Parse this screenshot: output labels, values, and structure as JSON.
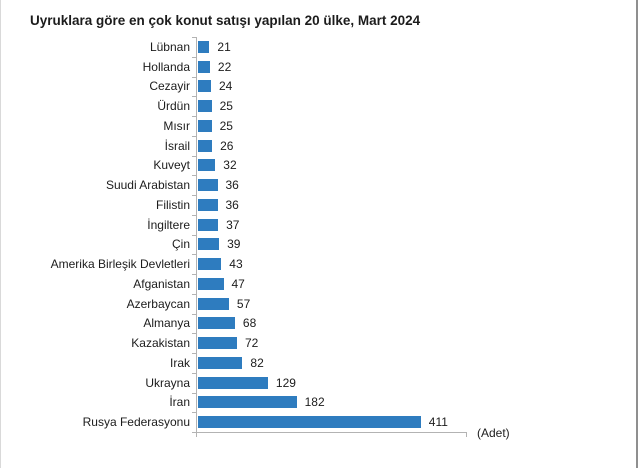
{
  "chart_data": {
    "type": "bar",
    "orientation": "horizontal",
    "title": "Uyruklara göre en çok konut satışı yapılan 20 ülke, Mart 2024",
    "unit": "(Adet)",
    "categories": [
      "Lübnan",
      "Hollanda",
      "Cezayir",
      "Ürdün",
      "Mısır",
      "İsrail",
      "Kuveyt",
      "Suudi Arabistan",
      "Filistin",
      "İngiltere",
      "Çin",
      "Amerika Birleşik Devletleri",
      "Afganistan",
      "Azerbaycan",
      "Almanya",
      "Kazakistan",
      "Irak",
      "Ukrayna",
      "İran",
      "Rusya Federasyonu"
    ],
    "values": [
      21,
      22,
      24,
      25,
      25,
      26,
      32,
      36,
      36,
      37,
      39,
      43,
      47,
      57,
      68,
      72,
      82,
      129,
      182,
      411
    ],
    "xlim": [
      0,
      500
    ],
    "value_labels_shown": true,
    "grid": false,
    "legend": false,
    "bar_color": "#2e7cbf",
    "axis_color": "#b3b3b3",
    "text_color": "#1c1c1c"
  }
}
